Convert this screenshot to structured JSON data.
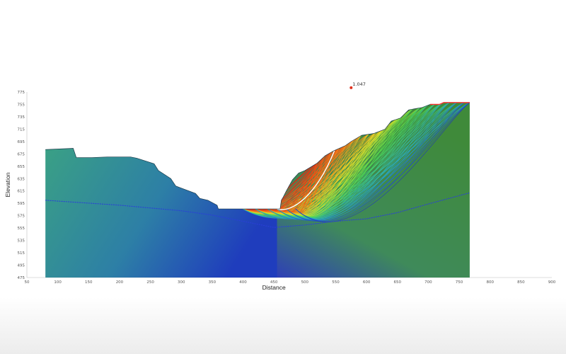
{
  "chart_data": {
    "type": "line",
    "xlabel": "Distance",
    "ylabel": "Elevation",
    "xlim": [
      50,
      900
    ],
    "ylim": [
      475,
      775
    ],
    "x_ticks": [
      "50",
      "100",
      "150",
      "200",
      "250",
      "300",
      "350",
      "400",
      "450",
      "500",
      "550",
      "600",
      "650",
      "700",
      "750",
      "800",
      "850",
      "900"
    ],
    "y_ticks": [
      "475",
      "495",
      "515",
      "535",
      "555",
      "575",
      "595",
      "615",
      "635",
      "655",
      "675",
      "695",
      "715",
      "735",
      "755",
      "775"
    ],
    "slip_center": {
      "x": 575,
      "y": 782,
      "label": "1.047"
    },
    "series": [
      {
        "role": "slope-surface",
        "x": [
          80,
          125,
          130,
          155,
          180,
          218,
          228,
          256,
          263,
          283,
          291,
          323,
          330,
          343,
          358,
          360,
          455,
          460,
          462,
          465,
          470,
          480,
          490,
          500,
          520,
          533,
          547,
          565,
          575,
          592,
          612,
          630,
          640,
          655,
          668,
          678,
          690,
          703,
          718,
          725,
          767
        ],
        "y": [
          682,
          684,
          669,
          669,
          670,
          670,
          668,
          659,
          648,
          635,
          623,
          611,
          603,
          600,
          592,
          586,
          586,
          586,
          600,
          605,
          615,
          633,
          644,
          648,
          660,
          672,
          680,
          688,
          695,
          705,
          708,
          715,
          728,
          733,
          746,
          748,
          750,
          755,
          755,
          758,
          758
        ]
      },
      {
        "role": "water-table",
        "x": [
          80,
          200,
          300,
          350,
          400,
          450,
          500,
          550,
          600,
          650,
          700,
          767
        ],
        "y": [
          600,
          592,
          583,
          576,
          566,
          556,
          560,
          566,
          570,
          580,
          594,
          612
        ]
      }
    ]
  },
  "colors": {
    "left_fill_top": "#3aa085",
    "left_fill_bottom": "#1f3dbd",
    "right_fill": "#3f8a3a",
    "crest": "#ff3030",
    "water_table": "#2a3fd8",
    "slip_center": "#e0311d"
  }
}
